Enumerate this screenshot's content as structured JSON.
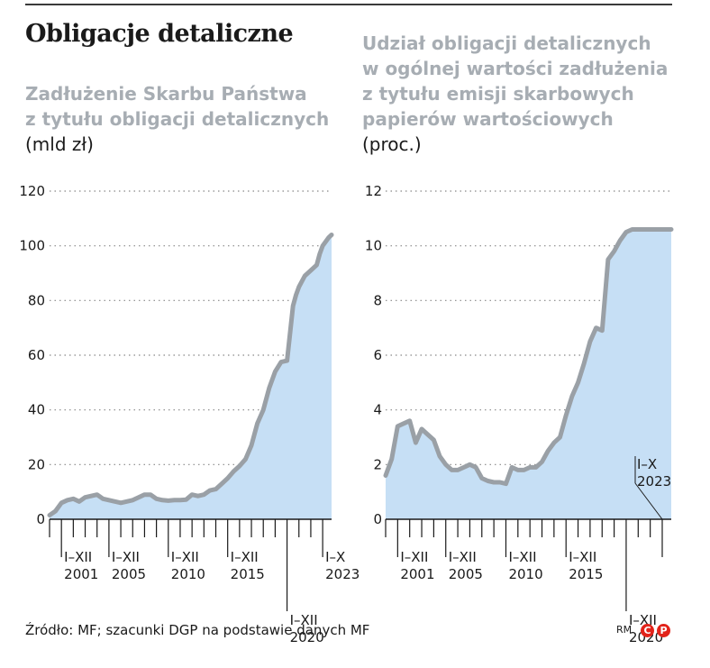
{
  "header": {
    "title": "Obligacje detaliczne"
  },
  "source": "Źródło: MF; szacunki DGP na podstawie danych MF",
  "credit": {
    "author": "RM",
    "badge_c": "C",
    "badge_p": "P",
    "color": "#e2231a"
  },
  "colors": {
    "area": "#c6dff5",
    "line": "#9aa0a6",
    "grid": "#888888",
    "subtitle": "#a7adb3"
  },
  "chart_data": [
    {
      "type": "area",
      "title_lines": [
        "Zadłużenie Skarbu Państwa",
        "z tytułu obligacji detalicznych"
      ],
      "unit": "(mld zł)",
      "ylim": [
        0,
        120
      ],
      "yticks": [
        0,
        20,
        40,
        60,
        80,
        100,
        120
      ],
      "xlim": [
        2000.0,
        2023.75
      ],
      "grid": true,
      "x_labels": [
        {
          "lines": [
            "I–XII",
            "2001"
          ],
          "x": 2001
        },
        {
          "lines": [
            "I–XII",
            "2005"
          ],
          "x": 2005
        },
        {
          "lines": [
            "I–XII",
            "2010"
          ],
          "x": 2010
        },
        {
          "lines": [
            "I–XII",
            "2015"
          ],
          "x": 2015
        },
        {
          "lines": [
            "I–XII",
            "2020"
          ],
          "x": 2020
        },
        {
          "lines": [
            "I–X",
            "2023"
          ],
          "x": 2023
        }
      ],
      "x": [
        2000.0,
        2000.5,
        2001.0,
        2001.5,
        2002.0,
        2002.5,
        2003.0,
        2003.5,
        2004.0,
        2004.5,
        2005.0,
        2005.5,
        2006.0,
        2006.5,
        2007.0,
        2007.5,
        2008.0,
        2008.5,
        2009.0,
        2009.5,
        2010.0,
        2010.5,
        2011.0,
        2011.5,
        2012.0,
        2012.5,
        2013.0,
        2013.5,
        2014.0,
        2014.5,
        2015.0,
        2015.5,
        2016.0,
        2016.5,
        2017.0,
        2017.5,
        2018.0,
        2018.5,
        2019.0,
        2019.5,
        2020.0,
        2020.5,
        2020.75,
        2021.0,
        2021.5,
        2022.0,
        2022.5,
        2022.75,
        2023.0,
        2023.5,
        2023.75
      ],
      "values": [
        1.5,
        3.0,
        6.0,
        7.0,
        7.5,
        6.5,
        8.0,
        8.5,
        9.0,
        7.5,
        7.0,
        6.5,
        6.0,
        6.5,
        7.0,
        8.0,
        9.0,
        9.0,
        7.5,
        7.0,
        6.8,
        7.0,
        7.0,
        7.2,
        9.0,
        8.5,
        9.0,
        10.5,
        11.0,
        13.0,
        15.0,
        17.5,
        19.5,
        22.0,
        27.0,
        35.0,
        40.0,
        48.0,
        54.0,
        57.5,
        58.0,
        78.0,
        82.0,
        85.0,
        89.0,
        91.0,
        93.0,
        97.0,
        100.0,
        103.0,
        104.0
      ]
    },
    {
      "type": "area",
      "title_lines": [
        "Udział obligacji detalicznych",
        "w ogólnej wartości zadłużenia",
        "z tytułu emisji skarbowych",
        "papierów wartościowych"
      ],
      "unit": "(proc.)",
      "ylim": [
        0,
        12
      ],
      "yticks": [
        0,
        2,
        4,
        6,
        8,
        10,
        12
      ],
      "xlim": [
        2000.0,
        2023.75
      ],
      "grid": true,
      "annotation": {
        "lines": [
          "I–X",
          "2023"
        ],
        "x": 2023
      },
      "x_labels": [
        {
          "lines": [
            "I–XII",
            "2001"
          ],
          "x": 2001
        },
        {
          "lines": [
            "I–XII",
            "2005"
          ],
          "x": 2005
        },
        {
          "lines": [
            "I–XII",
            "2010"
          ],
          "x": 2010
        },
        {
          "lines": [
            "I–XII",
            "2015"
          ],
          "x": 2015
        },
        {
          "lines": [
            "I–XII",
            "2020"
          ],
          "x": 2020
        }
      ],
      "x": [
        2000.0,
        2000.5,
        2001.0,
        2001.5,
        2002.0,
        2002.5,
        2003.0,
        2003.5,
        2004.0,
        2004.5,
        2005.0,
        2005.5,
        2006.0,
        2006.5,
        2007.0,
        2007.5,
        2008.0,
        2008.5,
        2009.0,
        2009.5,
        2010.0,
        2010.5,
        2011.0,
        2011.5,
        2012.0,
        2012.5,
        2013.0,
        2013.5,
        2014.0,
        2014.5,
        2015.0,
        2015.5,
        2016.0,
        2016.5,
        2017.0,
        2017.5,
        2018.0,
        2018.5,
        2019.0,
        2019.5,
        2020.0,
        2020.5,
        2020.75,
        2021.0,
        2021.5,
        2022.0,
        2022.5,
        2022.75,
        2023.0,
        2023.5,
        2023.75
      ],
      "values": [
        1.6,
        2.2,
        3.4,
        3.5,
        3.6,
        2.8,
        3.3,
        3.1,
        2.9,
        2.3,
        2.0,
        1.8,
        1.8,
        1.9,
        2.0,
        1.9,
        1.5,
        1.4,
        1.35,
        1.35,
        1.3,
        1.9,
        1.8,
        1.8,
        1.9,
        1.9,
        2.1,
        2.5,
        2.8,
        3.0,
        3.8,
        4.5,
        5.0,
        5.7,
        6.5,
        7.0,
        6.9,
        9.5,
        9.8,
        10.2,
        10.5,
        10.6,
        10.6,
        10.6,
        10.6,
        10.6,
        10.6,
        10.6,
        10.6,
        10.6,
        10.6
      ]
    }
  ]
}
